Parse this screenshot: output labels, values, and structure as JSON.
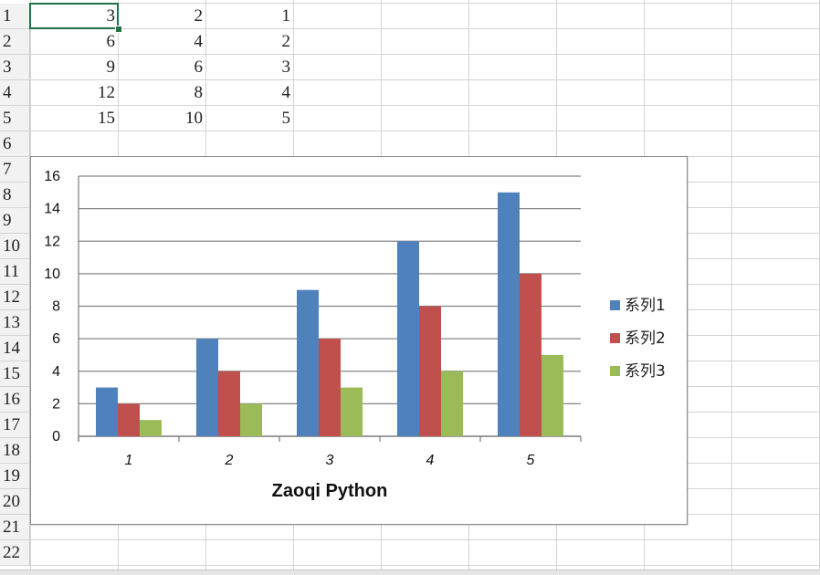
{
  "sheet": {
    "row_numbers": [
      "1",
      "2",
      "3",
      "4",
      "5",
      "6",
      "7",
      "8",
      "9",
      "10",
      "11",
      "12",
      "13",
      "14",
      "15",
      "16",
      "17",
      "18",
      "19",
      "20",
      "21",
      "22"
    ],
    "cells": [
      [
        "3",
        "2",
        "1"
      ],
      [
        "6",
        "4",
        "2"
      ],
      [
        "9",
        "6",
        "3"
      ],
      [
        "12",
        "8",
        "4"
      ],
      [
        "15",
        "10",
        "5"
      ]
    ],
    "active_cell_color": "#217346"
  },
  "chart_data": {
    "type": "bar",
    "categories": [
      "1",
      "2",
      "3",
      "4",
      "5"
    ],
    "series": [
      {
        "name": "系列1",
        "values": [
          3,
          6,
          9,
          12,
          15
        ],
        "color": "#4f81bd"
      },
      {
        "name": "系列2",
        "values": [
          2,
          4,
          6,
          8,
          10
        ],
        "color": "#c0504d"
      },
      {
        "name": "系列3",
        "values": [
          1,
          2,
          3,
          4,
          5
        ],
        "color": "#9bbb59"
      }
    ],
    "xlabel": "Zaoqi Python",
    "ylabel": "",
    "ylim": [
      0,
      16
    ],
    "yticks": [
      "0",
      "2",
      "4",
      "6",
      "8",
      "10",
      "12",
      "14",
      "16"
    ],
    "grid": true,
    "legend": "right"
  }
}
